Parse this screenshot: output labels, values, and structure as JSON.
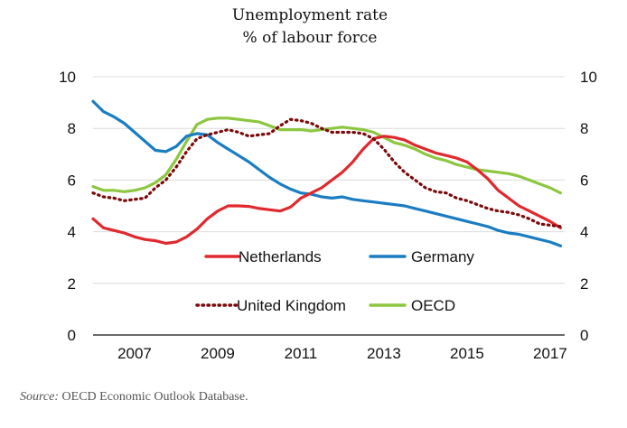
{
  "chart_data": {
    "type": "line",
    "title": "Unemployment rate",
    "subtitle": "% of labour force",
    "ylim": [
      0,
      10
    ],
    "y_ticks": [
      "0",
      "2",
      "4",
      "6",
      "8",
      "10"
    ],
    "x_ticks": [
      "2007",
      "2009",
      "2011",
      "2013",
      "2015",
      "2017"
    ],
    "grid": "horizontal",
    "legend_position": "inside-bottom",
    "series": [
      {
        "name": "Netherlands",
        "color": "#e0292e",
        "style": "solid",
        "x": [
          2006.5,
          2006.75,
          2007.0,
          2007.25,
          2007.5,
          2007.75,
          2008.0,
          2008.25,
          2008.5,
          2008.75,
          2009.0,
          2009.25,
          2009.5,
          2009.75,
          2010.0,
          2010.25,
          2010.5,
          2010.75,
          2011.0,
          2011.25,
          2011.5,
          2011.75,
          2012.0,
          2012.25,
          2012.5,
          2012.75,
          2013.0,
          2013.25,
          2013.5,
          2013.75,
          2014.0,
          2014.25,
          2014.5,
          2014.75,
          2015.0,
          2015.25,
          2015.5,
          2015.75,
          2016.0,
          2016.25,
          2016.5,
          2016.75,
          2017.0,
          2017.25,
          2017.5,
          2017.75
        ],
        "values": [
          4.5,
          4.15,
          4.05,
          3.95,
          3.8,
          3.7,
          3.65,
          3.55,
          3.6,
          3.8,
          4.1,
          4.5,
          4.8,
          5.0,
          5.0,
          4.98,
          4.9,
          4.85,
          4.8,
          4.95,
          5.3,
          5.5,
          5.7,
          6.0,
          6.3,
          6.7,
          7.2,
          7.6,
          7.7,
          7.65,
          7.55,
          7.35,
          7.2,
          7.05,
          6.95,
          6.85,
          6.7,
          6.4,
          6.05,
          5.6,
          5.3,
          5.0,
          4.8,
          4.6,
          4.4,
          4.15
        ]
      },
      {
        "name": "Germany",
        "color": "#1a7dc1",
        "style": "solid",
        "x": [
          2006.5,
          2006.75,
          2007.0,
          2007.25,
          2007.5,
          2007.75,
          2008.0,
          2008.25,
          2008.5,
          2008.75,
          2009.0,
          2009.25,
          2009.5,
          2009.75,
          2010.0,
          2010.25,
          2010.5,
          2010.75,
          2011.0,
          2011.25,
          2011.5,
          2011.75,
          2012.0,
          2012.25,
          2012.5,
          2012.75,
          2013.0,
          2013.25,
          2013.5,
          2013.75,
          2014.0,
          2014.25,
          2014.5,
          2014.75,
          2015.0,
          2015.25,
          2015.5,
          2015.75,
          2016.0,
          2016.25,
          2016.5,
          2016.75,
          2017.0,
          2017.25,
          2017.5,
          2017.75
        ],
        "values": [
          9.05,
          8.65,
          8.45,
          8.2,
          7.85,
          7.5,
          7.15,
          7.1,
          7.3,
          7.7,
          7.8,
          7.75,
          7.45,
          7.2,
          6.95,
          6.7,
          6.4,
          6.1,
          5.85,
          5.65,
          5.5,
          5.45,
          5.35,
          5.3,
          5.35,
          5.25,
          5.2,
          5.15,
          5.1,
          5.05,
          5.0,
          4.9,
          4.8,
          4.7,
          4.6,
          4.5,
          4.4,
          4.3,
          4.2,
          4.05,
          3.95,
          3.9,
          3.8,
          3.7,
          3.6,
          3.45
        ]
      },
      {
        "name": "United Kingdom",
        "color": "#7a0a0a",
        "style": "dotted",
        "x": [
          2006.5,
          2006.75,
          2007.0,
          2007.25,
          2007.5,
          2007.75,
          2008.0,
          2008.25,
          2008.5,
          2008.75,
          2009.0,
          2009.25,
          2009.5,
          2009.75,
          2010.0,
          2010.25,
          2010.5,
          2010.75,
          2011.0,
          2011.25,
          2011.5,
          2011.75,
          2012.0,
          2012.25,
          2012.5,
          2012.75,
          2013.0,
          2013.25,
          2013.5,
          2013.75,
          2014.0,
          2014.25,
          2014.5,
          2014.75,
          2015.0,
          2015.25,
          2015.5,
          2015.75,
          2016.0,
          2016.25,
          2016.5,
          2016.75,
          2017.0,
          2017.25,
          2017.5,
          2017.75
        ],
        "values": [
          5.5,
          5.35,
          5.3,
          5.2,
          5.25,
          5.3,
          5.7,
          6.0,
          6.5,
          7.1,
          7.6,
          7.75,
          7.85,
          7.95,
          7.85,
          7.7,
          7.75,
          7.8,
          8.1,
          8.35,
          8.3,
          8.2,
          8.0,
          7.85,
          7.85,
          7.85,
          7.8,
          7.6,
          7.2,
          6.7,
          6.3,
          6.0,
          5.7,
          5.55,
          5.5,
          5.3,
          5.2,
          5.05,
          4.9,
          4.8,
          4.75,
          4.65,
          4.5,
          4.3,
          4.25,
          4.2
        ]
      },
      {
        "name": "OECD",
        "color": "#8dc63f",
        "style": "solid",
        "x": [
          2006.5,
          2006.75,
          2007.0,
          2007.25,
          2007.5,
          2007.75,
          2008.0,
          2008.25,
          2008.5,
          2008.75,
          2009.0,
          2009.25,
          2009.5,
          2009.75,
          2010.0,
          2010.25,
          2010.5,
          2010.75,
          2011.0,
          2011.25,
          2011.5,
          2011.75,
          2012.0,
          2012.25,
          2012.5,
          2012.75,
          2013.0,
          2013.25,
          2013.5,
          2013.75,
          2014.0,
          2014.25,
          2014.5,
          2014.75,
          2015.0,
          2015.25,
          2015.5,
          2015.75,
          2016.0,
          2016.25,
          2016.5,
          2016.75,
          2017.0,
          2017.25,
          2017.5,
          2017.75
        ],
        "values": [
          5.75,
          5.6,
          5.6,
          5.55,
          5.6,
          5.7,
          5.9,
          6.2,
          6.8,
          7.5,
          8.15,
          8.35,
          8.4,
          8.4,
          8.35,
          8.3,
          8.25,
          8.1,
          7.95,
          7.95,
          7.95,
          7.9,
          7.95,
          8.0,
          8.05,
          8.0,
          7.95,
          7.85,
          7.65,
          7.45,
          7.35,
          7.2,
          7.0,
          6.85,
          6.75,
          6.6,
          6.5,
          6.4,
          6.35,
          6.3,
          6.25,
          6.15,
          6.0,
          5.85,
          5.7,
          5.5
        ]
      }
    ]
  },
  "source": {
    "label": "Source:",
    "text": " OECD Economic Outlook Database."
  }
}
